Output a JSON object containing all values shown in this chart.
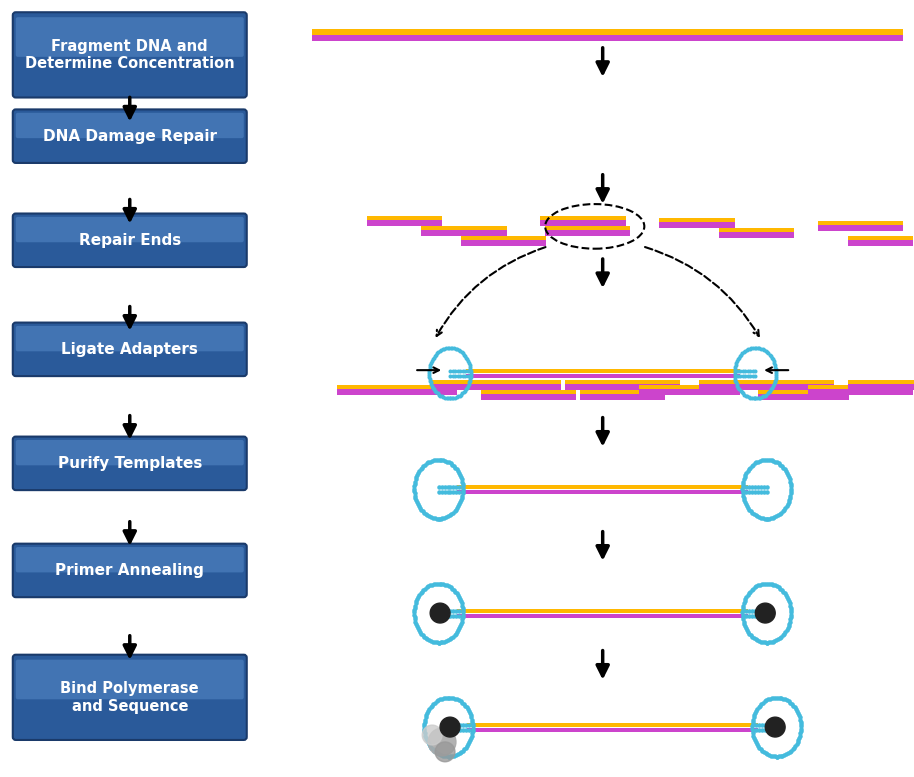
{
  "steps": [
    "Fragment DNA and\nDetermine Concentration",
    "DNA Damage Repair",
    "Repair Ends",
    "Ligate Adapters",
    "Purify Templates",
    "Primer Annealing",
    "Bind Polymerase\nand Sequence"
  ],
  "box_color_top": "#4a7ab5",
  "box_color_bottom": "#2a5490",
  "box_text_color": "#ffffff",
  "arrow_color": "#1a1a1a",
  "dna_orange": "#FFB800",
  "dna_purple": "#CC44CC",
  "adapter_blue": "#44BBDD",
  "background": "#ffffff"
}
